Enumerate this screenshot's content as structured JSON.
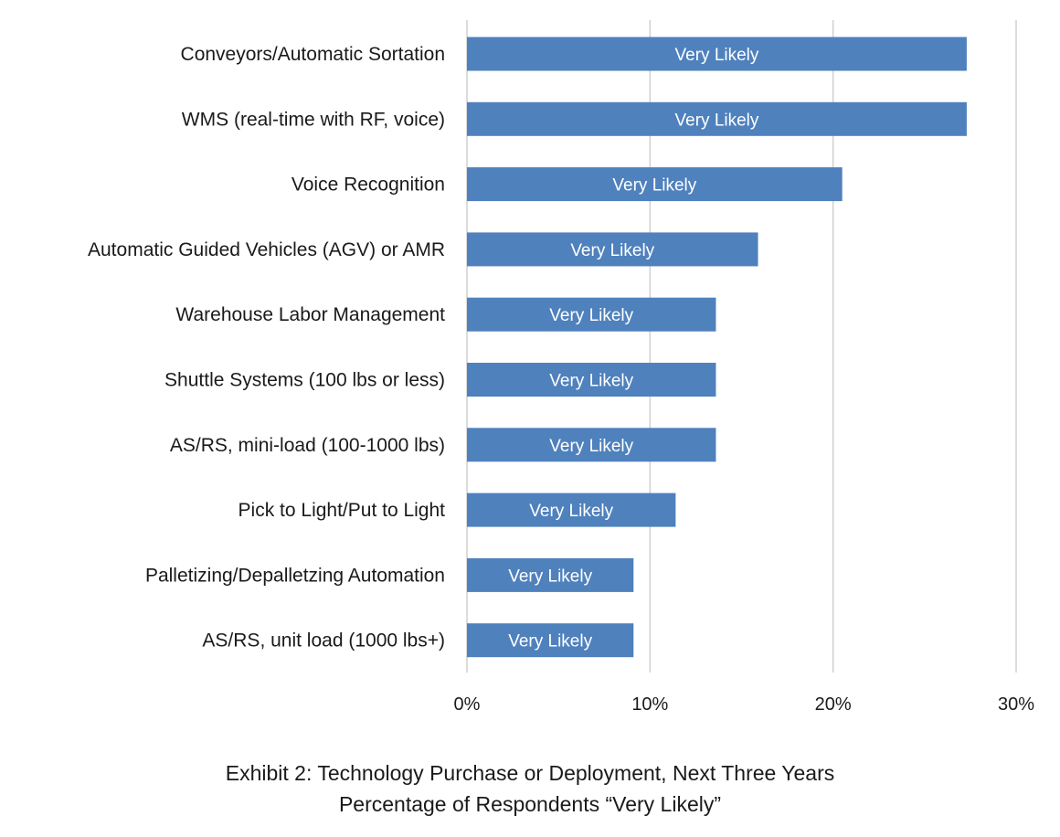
{
  "chart_data": {
    "type": "bar",
    "orientation": "horizontal",
    "categories": [
      "Conveyors/Automatic Sortation",
      "WMS (real-time with RF, voice)",
      "Voice Recognition",
      "Automatic Guided Vehicles (AGV) or AMR",
      "Warehouse Labor Management",
      "Shuttle Systems (100 lbs or less)",
      "AS/RS, mini-load (100-1000 lbs)",
      "Pick to Light/Put to Light",
      "Palletizing/Depalletzing Automation",
      "AS/RS, unit load (1000 lbs+)"
    ],
    "series": [
      {
        "name": "Very Likely",
        "values": [
          27.3,
          27.3,
          20.5,
          15.9,
          13.6,
          13.6,
          13.6,
          11.4,
          9.1,
          9.1
        ],
        "color": "#4f81bd"
      }
    ],
    "xlim": [
      0,
      30
    ],
    "xticks": [
      0,
      10,
      20,
      30
    ],
    "xtick_labels": [
      "0%",
      "10%",
      "20%",
      "30%"
    ],
    "grid": true,
    "title": "Exhibit 2: Technology Purchase or Deployment, Next Three Years",
    "subtitle": "Percentage of Respondents “Very Likely”",
    "xlabel": "",
    "ylabel": ""
  }
}
